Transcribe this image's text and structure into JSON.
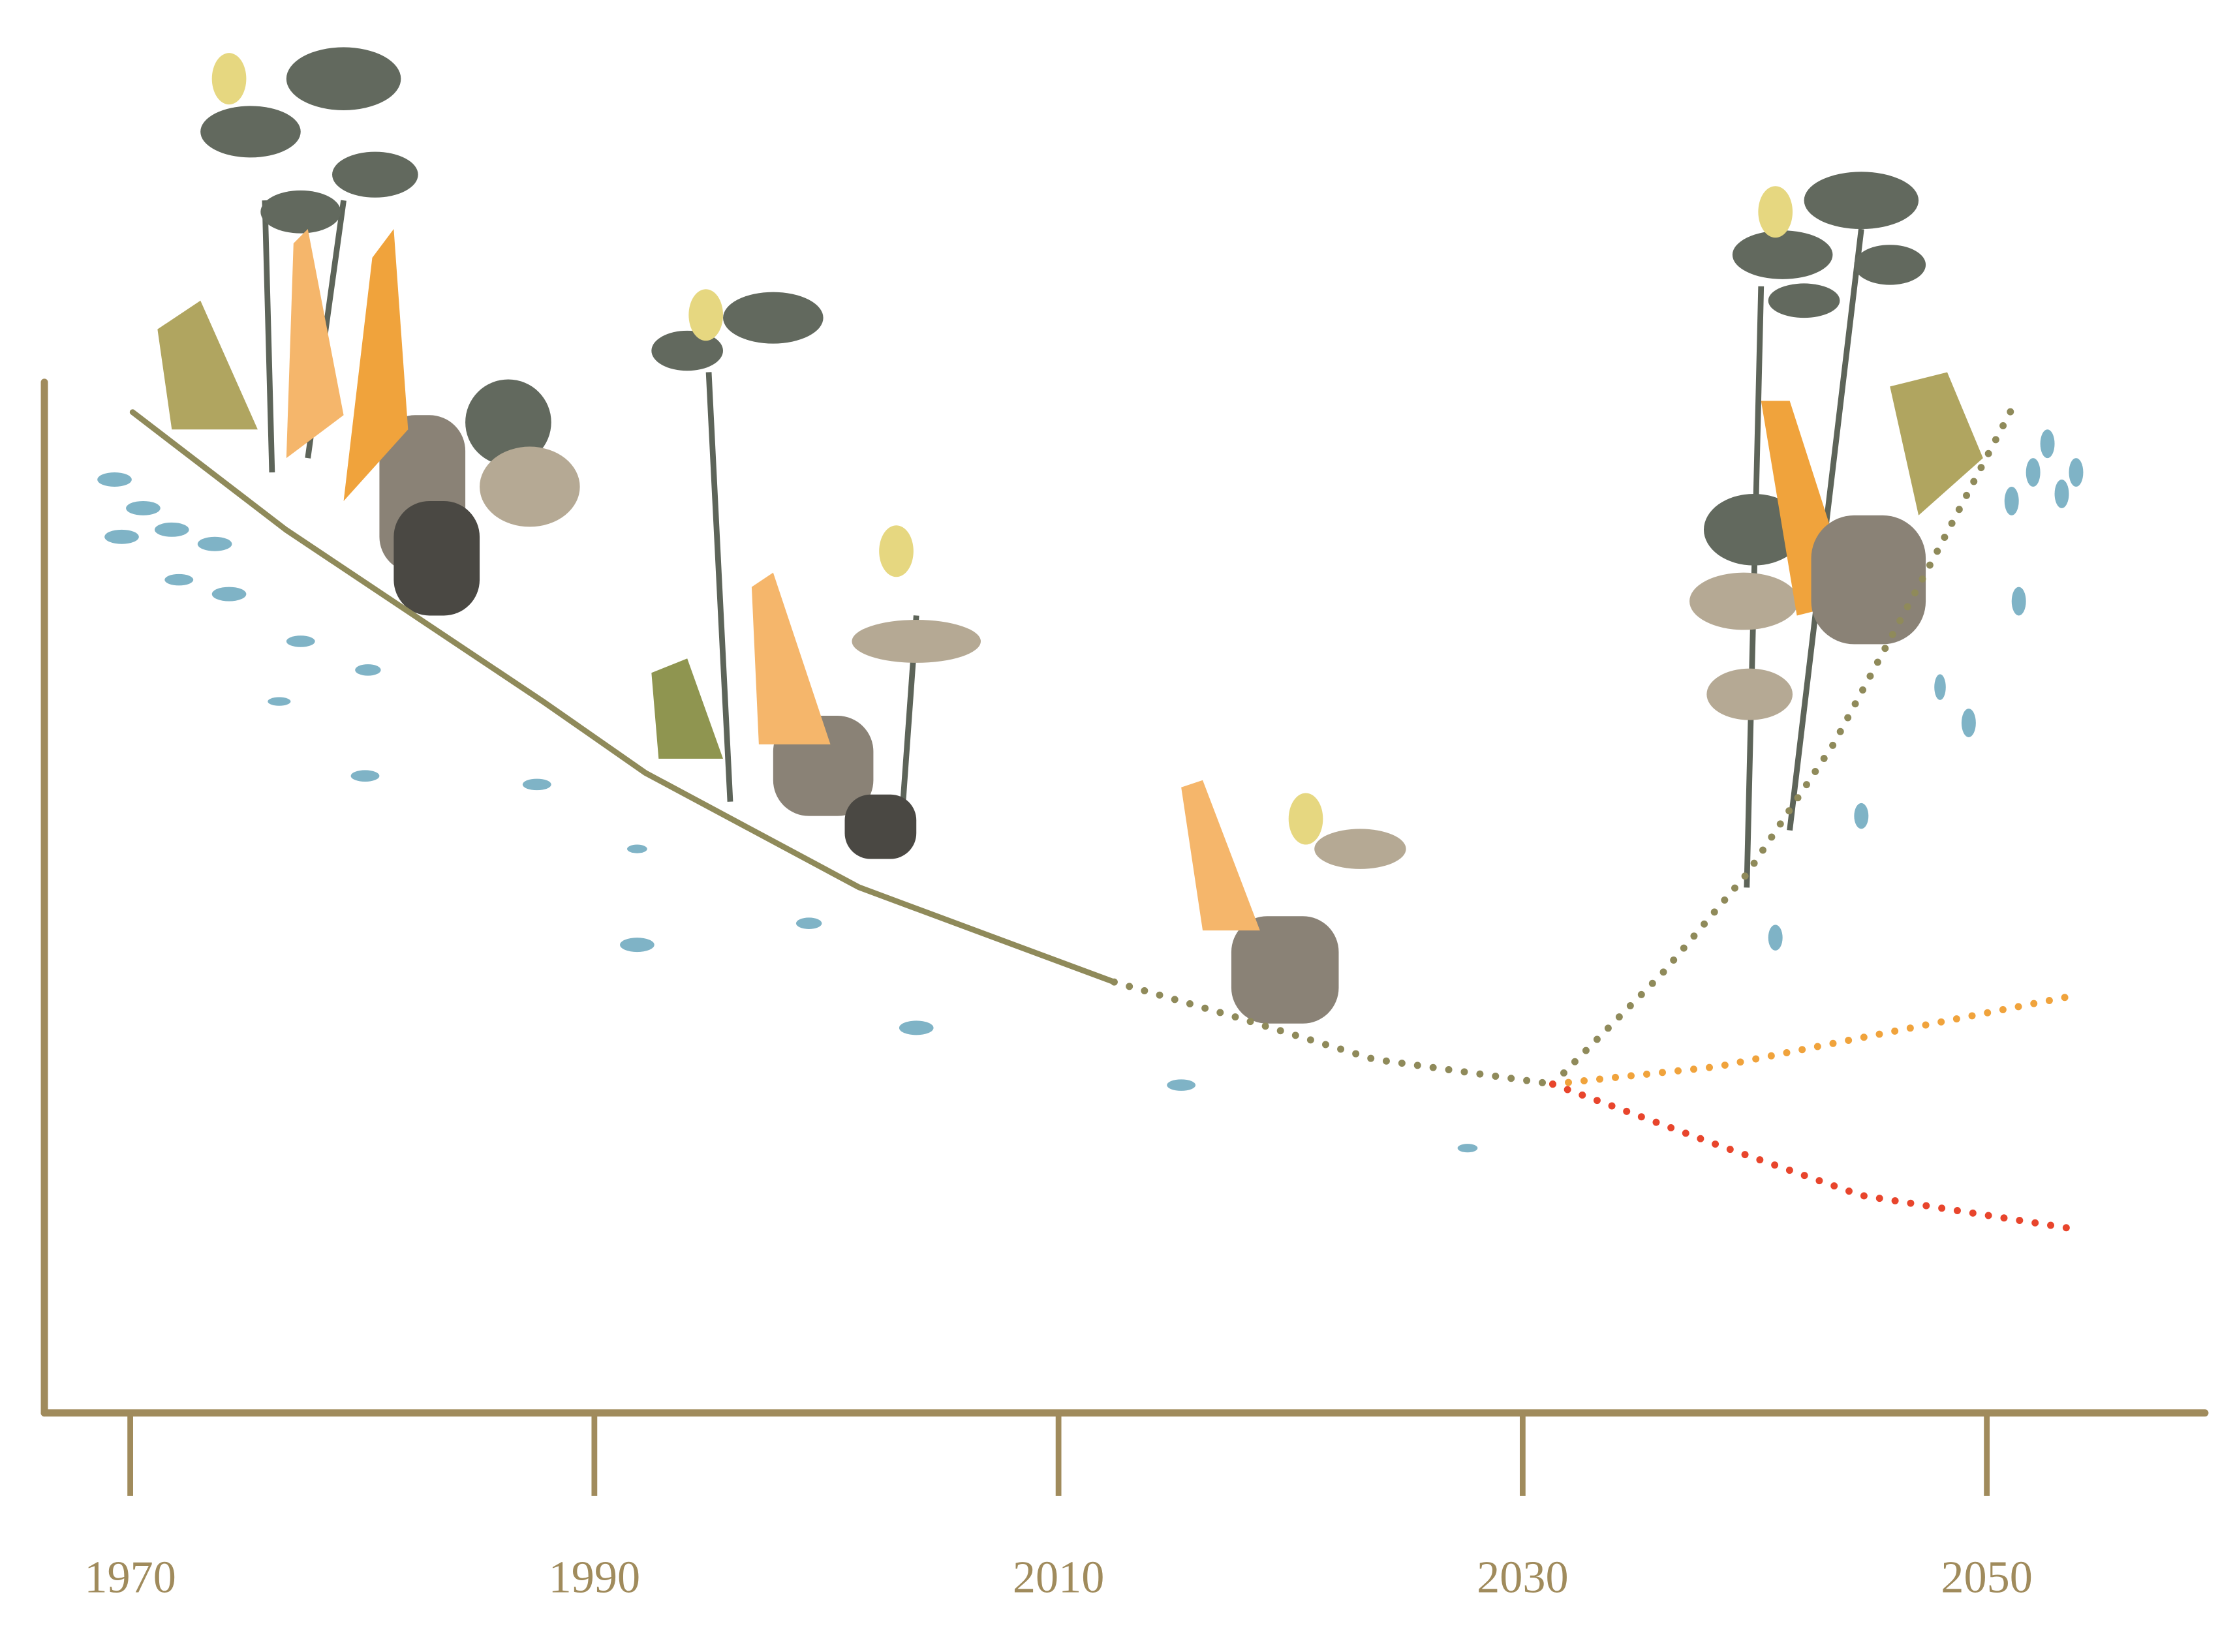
{
  "chart_data": {
    "type": "line",
    "xlim": [
      1966.3,
      2059.4
    ],
    "xticks": [
      1970,
      1990,
      2010,
      2030,
      2050
    ],
    "ylim": [
      0,
      100
    ],
    "axis_color": "#a08b5c",
    "series": [
      {
        "color": "#8f8a5a",
        "line_style": "solid",
        "x": [
          1970.1,
          1976.7,
          1987.8,
          1992.2,
          2001.4,
          2012.4
        ],
        "values": [
          97.1,
          85.7,
          69.0,
          62.1,
          51.0,
          41.8
        ]
      },
      {
        "color": "#8f8a5a",
        "line_style": "dotted",
        "x": [
          2012.4,
          2017.5,
          2023.6,
          2031.3
        ],
        "values": [
          41.8,
          38.5,
          34.3,
          31.9
        ]
      },
      {
        "color": "#8f8a5a",
        "line_style": "dotted",
        "x": [
          2031.3,
          2036.0,
          2039.7,
          2043.4,
          2047.7,
          2051.1
        ],
        "values": [
          31.9,
          42.6,
          52.4,
          64.9,
          82.9,
          97.5
        ]
      },
      {
        "color": "#f0a33c",
        "line_style": "dotted",
        "x": [
          2031.3,
          2038.4,
          2044.6,
          2054.0
        ],
        "values": [
          31.9,
          33.6,
          36.4,
          40.6
        ]
      },
      {
        "color": "#e8452c",
        "line_style": "dotted",
        "x": [
          2031.3,
          2038.4,
          2044.6,
          2053.6
        ],
        "values": [
          31.9,
          26.0,
          21.1,
          17.9
        ]
      }
    ]
  }
}
